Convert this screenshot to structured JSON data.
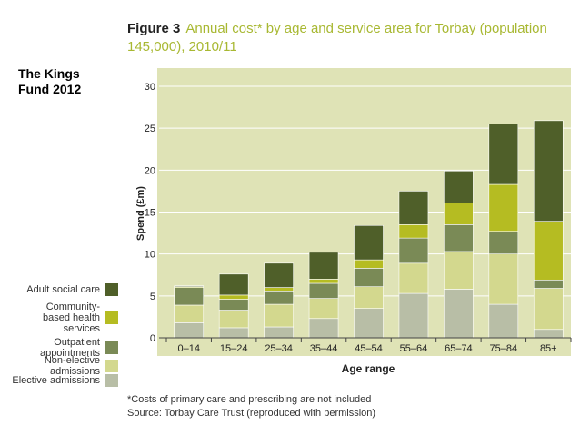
{
  "figure": {
    "label": "Figure 3",
    "title": "Annual cost* by age and service area for Torbay (population 145,000), 2010/11"
  },
  "watermark": "The Kings\nFund 2012",
  "footnotes": {
    "note": "*Costs of primary care and prescribing are not included",
    "source": "Source: Torbay Care Trust (reproduced with permission)"
  },
  "colors": {
    "plot_bg": "#dfe3b6",
    "grid": "#ffffff",
    "axis": "#444444"
  },
  "chart_data": {
    "type": "bar",
    "stacked": true,
    "title": "Annual cost* by age and service area for Torbay (population 145,000), 2010/11",
    "xlabel": "Age range",
    "ylabel": "Spend (£m)",
    "ylim": [
      0,
      30
    ],
    "yticks": [
      0,
      5,
      10,
      15,
      20,
      25,
      30
    ],
    "grid": true,
    "categories": [
      "0–14",
      "15–24",
      "25–34",
      "35–44",
      "45–54",
      "55–64",
      "65–74",
      "75–84",
      "85+"
    ],
    "series": [
      {
        "name": "Elective admissions",
        "color": "#b8bea6",
        "values": [
          1.8,
          1.2,
          1.3,
          2.3,
          3.5,
          5.3,
          5.8,
          4.0,
          1.0
        ]
      },
      {
        "name": "Non-elective admissions",
        "color": "#d3d88e",
        "values": [
          2.1,
          2.1,
          2.7,
          2.4,
          2.6,
          3.6,
          4.5,
          6.0,
          4.9
        ]
      },
      {
        "name": "Outpatient appointments",
        "color": "#7a8a56",
        "values": [
          2.1,
          1.3,
          1.6,
          1.8,
          2.2,
          3.0,
          3.2,
          2.7,
          1.0
        ]
      },
      {
        "name": "Community-based health services",
        "color": "#b5bc22",
        "values": [
          0.1,
          0.5,
          0.4,
          0.5,
          1.0,
          1.6,
          2.6,
          5.6,
          7.0
        ]
      },
      {
        "name": "Adult social care",
        "color": "#4f5f29",
        "values": [
          0.1,
          2.5,
          2.9,
          3.2,
          4.1,
          4.0,
          3.8,
          7.2,
          12.0
        ]
      }
    ],
    "legend_order": [
      "Adult social care",
      "Community-based health services",
      "Outpatient appointments",
      "Non-elective admissions",
      "Elective admissions"
    ]
  }
}
